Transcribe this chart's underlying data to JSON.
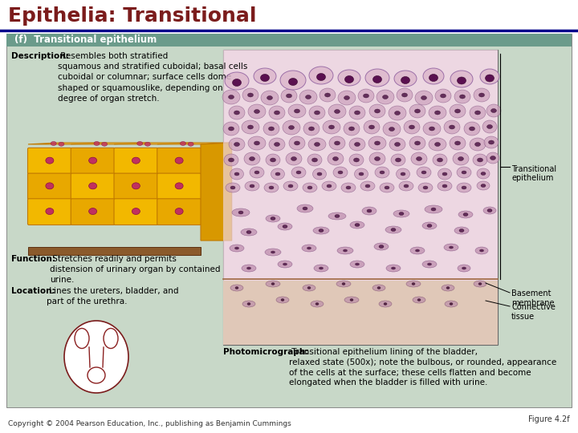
{
  "title": "Epithelia: Transitional",
  "title_color": "#7B1C1C",
  "title_fontsize": 18,
  "divider_color": "#00008B",
  "divider_linewidth": 2.5,
  "bg_color": "#FFFFFF",
  "panel_bg": "#C8D8C8",
  "panel_header_bg": "#6B9B8B",
  "panel_header_text": "(f)  Transitional epithelium",
  "panel_header_color": "#FFFFFF",
  "panel_header_fontsize": 8.5,
  "desc_bold": "Description:",
  "desc_text": " Resembles both stratified\nsquamous and stratified cuboidal; basal cells\ncuboidal or columnar; surface cells dome\nshaped or squamouslike, depending on\ndegree of organ stretch.",
  "func_bold": "Function:",
  "func_text": " Stretches readily and permits\ndistension of urinary organ by contained\nurine.",
  "loc_bold": "Location:",
  "loc_text": " Lines the ureters, bladder, and\npart of the urethra.",
  "photo_bold": "Photomicrograph:",
  "photo_text": " Transitional epithelium lining of the bladder,\nrelaxed state (500x); note the bulbous, or rounded, appearance\nof the cells at the surface; these cells flatten and become\nelongated when the bladder is filled with urine.",
  "label_trans": "Transitional\nepithelium",
  "label_basement": "Basement\nmembrane",
  "label_connective": "Connective\ntissue",
  "figure_label": "Figure 4.2f",
  "copyright": "Copyright © 2004 Pearson Education, Inc., publishing as Benjamin Cummings",
  "text_fs": 7.5,
  "small_fs": 7,
  "cell_color1": "#F2B800",
  "cell_color2": "#E8A800",
  "cell_edge": "#C07800",
  "nucleus_color": "#C03060",
  "base_color": "#8B5A2B",
  "micro_bg": "#E8C8D0",
  "micro_cell_fill": "#D4A8C0",
  "micro_cell_edge": "#905090",
  "micro_nuc_fill": "#6A1858",
  "micro_ct_color": "#E0CFC0"
}
